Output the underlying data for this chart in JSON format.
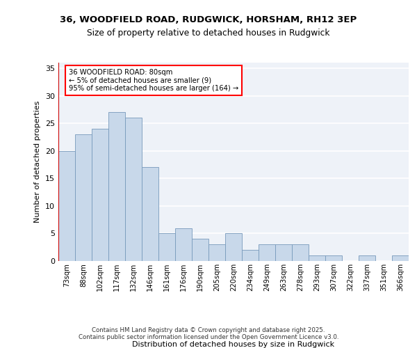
{
  "title_line1": "36, WOODFIELD ROAD, RUDGWICK, HORSHAM, RH12 3EP",
  "title_line2": "Size of property relative to detached houses in Rudgwick",
  "xlabel": "Distribution of detached houses by size in Rudgwick",
  "ylabel": "Number of detached properties",
  "categories": [
    "73sqm",
    "88sqm",
    "102sqm",
    "117sqm",
    "132sqm",
    "146sqm",
    "161sqm",
    "176sqm",
    "190sqm",
    "205sqm",
    "220sqm",
    "234sqm",
    "249sqm",
    "263sqm",
    "278sqm",
    "293sqm",
    "307sqm",
    "322sqm",
    "337sqm",
    "351sqm",
    "366sqm"
  ],
  "bar_heights": [
    20,
    23,
    24,
    27,
    26,
    17,
    5,
    6,
    4,
    3,
    5,
    2,
    3,
    3,
    3,
    1,
    1,
    0,
    1,
    0,
    1
  ],
  "bar_color": "#c8d8ea",
  "bar_edgecolor": "#7799bb",
  "annotation_text": "36 WOODFIELD ROAD: 80sqm\n← 5% of detached houses are smaller (9)\n95% of semi-detached houses are larger (164) →",
  "vline_color": "#cc0000",
  "ylim": [
    0,
    36
  ],
  "yticks": [
    0,
    5,
    10,
    15,
    20,
    25,
    30,
    35
  ],
  "bg_color": "#eef2f8",
  "grid_color": "white",
  "footer": "Contains HM Land Registry data © Crown copyright and database right 2025.\nContains public sector information licensed under the Open Government Licence v3.0."
}
